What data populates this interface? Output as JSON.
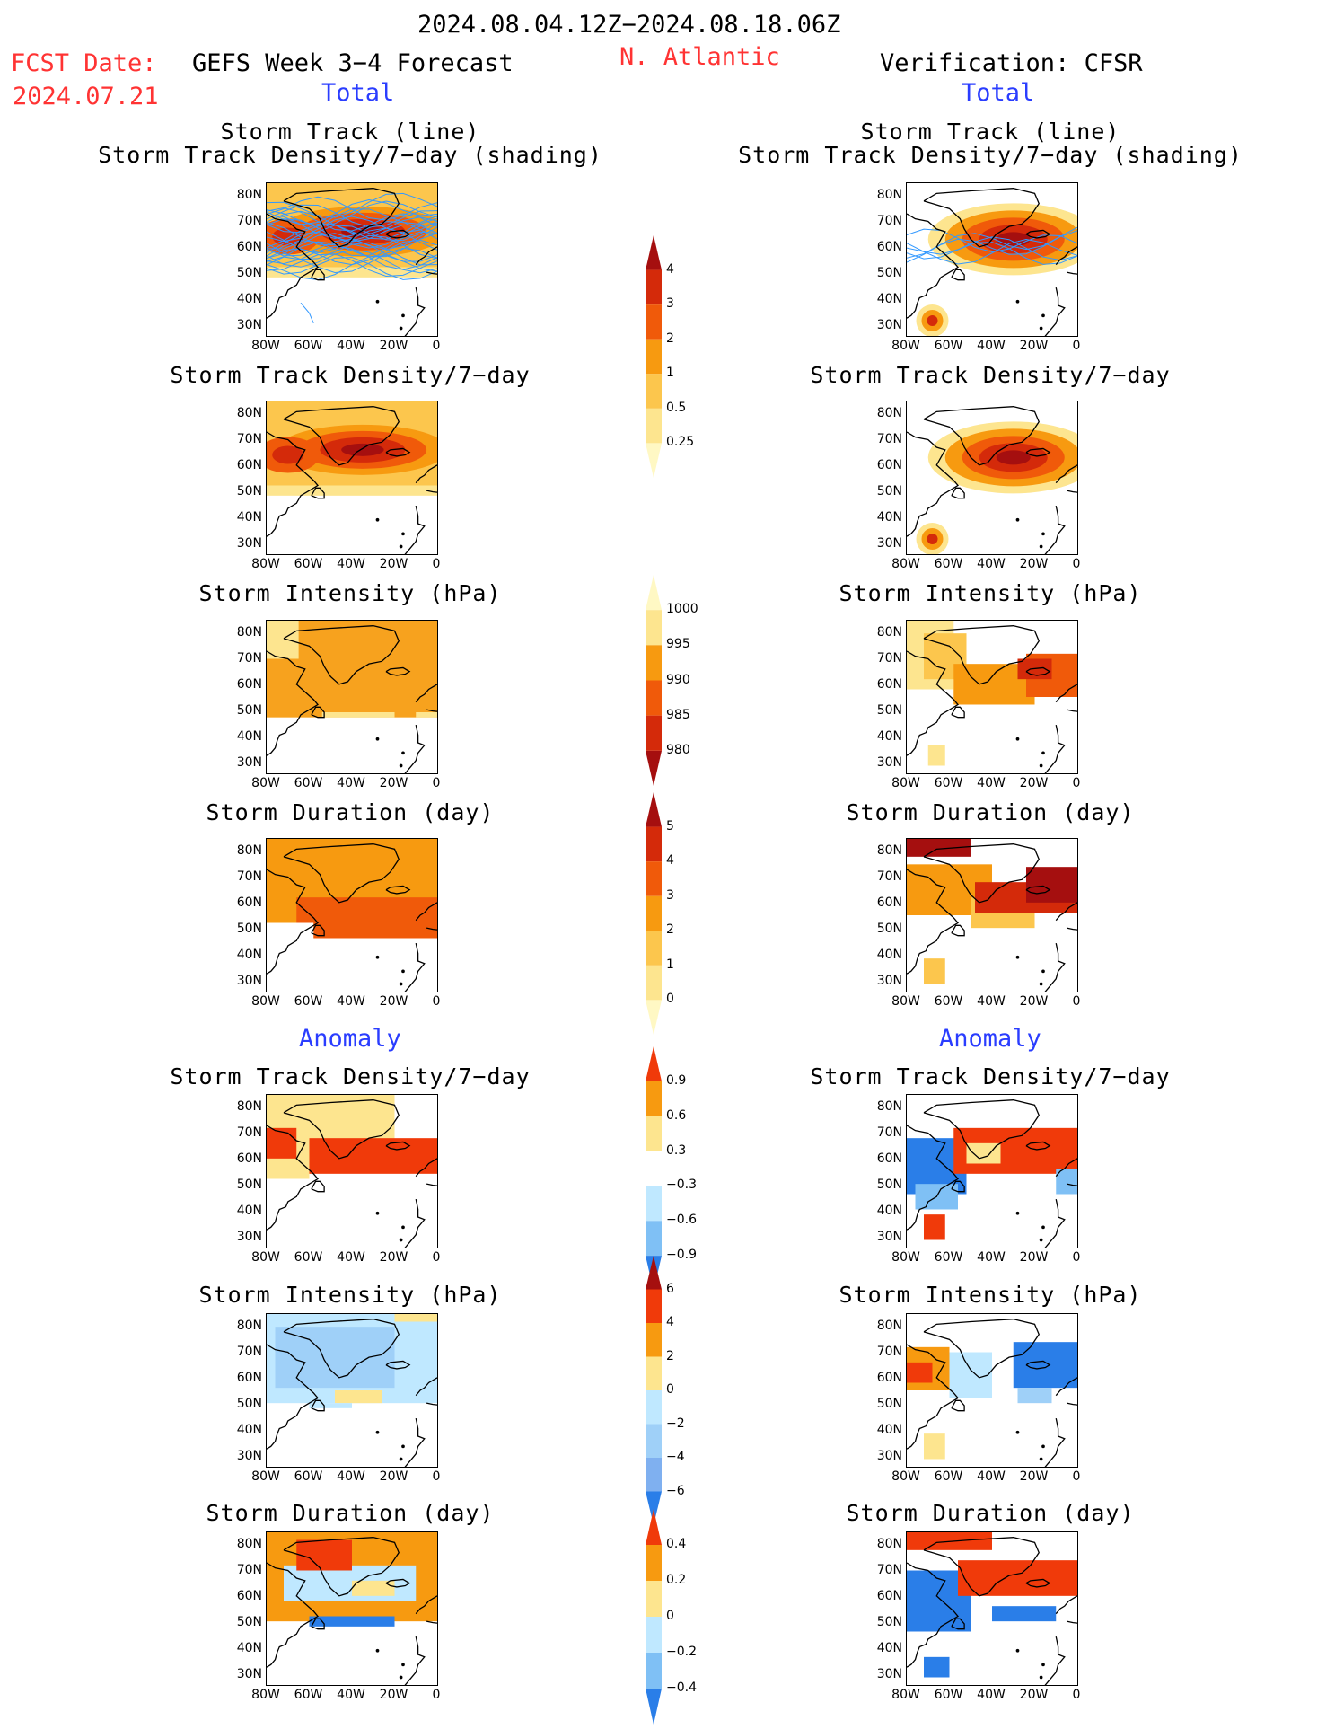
{
  "header": {
    "date_range": "2024.08.04.12Z−2024.08.18.06Z",
    "fcst_label": "FCST Date:",
    "fcst_date": "2024.07.21",
    "forecast_title": "GEFS Week 3−4 Forecast",
    "region": "N. Atlantic",
    "verification": "Verification: CFSR",
    "total_left": "Total",
    "total_right": "Total",
    "anomaly_left": "Anomaly",
    "anomaly_right": "Anomaly"
  },
  "panel_titles": {
    "track_line": "Storm Track (line)",
    "track_shading": "Storm Track Density/7−day (shading)",
    "density": "Storm Track Density/7−day",
    "intensity": "Storm Intensity (hPa)",
    "duration": "Storm Duration (day)"
  },
  "axes": {
    "lat_labels": [
      "80N",
      "70N",
      "60N",
      "50N",
      "40N",
      "30N"
    ],
    "lon_labels": [
      "80W",
      "60W",
      "40W",
      "20W",
      "0"
    ]
  },
  "colorbars": {
    "density_total": {
      "levels": [
        "4",
        "3",
        "2",
        "1",
        "0.5",
        "0.25"
      ],
      "colors": [
        "#a50f0f",
        "#d42a0a",
        "#f05a0a",
        "#f79a10",
        "#fcc64d",
        "#fde58f",
        "#fff8c4"
      ]
    },
    "intensity_total": {
      "levels": [
        "1000",
        "995",
        "990",
        "985",
        "980"
      ],
      "colors": [
        "#fff8c4",
        "#fde58f",
        "#f79a10",
        "#f05a0a",
        "#d42a0a",
        "#a50f0f"
      ]
    },
    "duration_total": {
      "levels": [
        "5",
        "4",
        "3",
        "2",
        "1",
        "0"
      ],
      "colors": [
        "#a50f0f",
        "#d42a0a",
        "#f05a0a",
        "#f79a10",
        "#fcc64d",
        "#fde58f",
        "#fff8c4"
      ]
    },
    "density_anom": {
      "levels": [
        "0.9",
        "0.6",
        "0.3",
        "−0.3",
        "−0.6",
        "−0.9"
      ],
      "colors": [
        "#f03a0a",
        "#f79a10",
        "#fde58f",
        "#ffffff",
        "#bfe8ff",
        "#7fc0f5",
        "#2a7ee8"
      ]
    },
    "intensity_anom": {
      "levels": [
        "6",
        "4",
        "2",
        "0",
        "−2",
        "−4",
        "−6"
      ],
      "colors": [
        "#a50f0f",
        "#f03a0a",
        "#f79a10",
        "#fde58f",
        "#bfe8ff",
        "#9fd0f8",
        "#7fb0f0",
        "#2a7ee8"
      ]
    },
    "duration_anom": {
      "levels": [
        "0.4",
        "0.2",
        "0",
        "−0.2",
        "−0.4"
      ],
      "colors": [
        "#f03a0a",
        "#f79a10",
        "#fde58f",
        "#bfe8ff",
        "#7fc0f5",
        "#2a7ee8"
      ]
    }
  },
  "colors": {
    "title_red": "#ff3333",
    "title_blue": "#2a3dff",
    "track_line": "#3399ff"
  }
}
